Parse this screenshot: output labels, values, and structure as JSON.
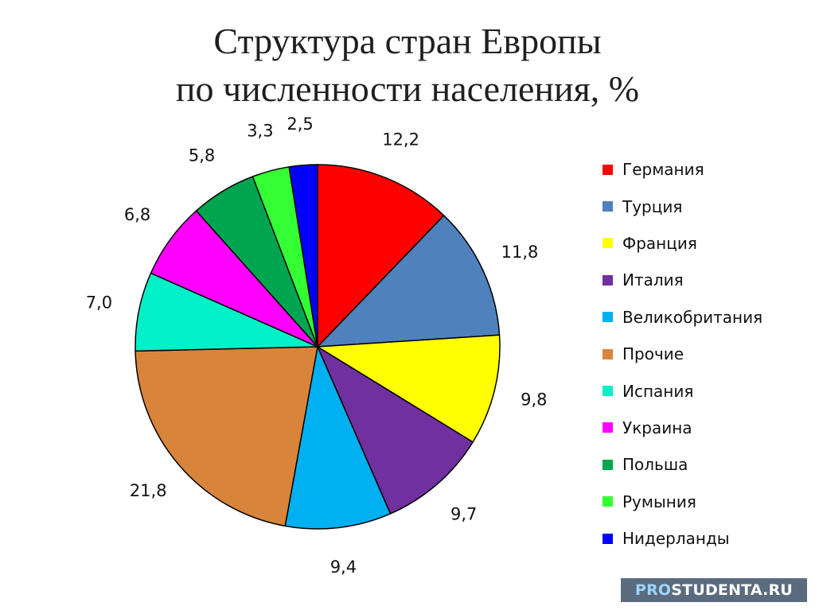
{
  "chart_data": {
    "type": "pie",
    "title": "Структура стран Европы",
    "subtitle": "по численности населения, %",
    "categories": [
      "Германия",
      "Турция",
      "Франция",
      "Италия",
      "Великобритания",
      "Прочие",
      "Испания",
      "Украина",
      "Польша",
      "Румыния",
      "Нидерланды"
    ],
    "values": [
      12.2,
      11.8,
      9.8,
      9.7,
      9.4,
      21.8,
      7.0,
      6.8,
      5.8,
      3.3,
      2.5
    ],
    "value_labels": [
      "12,2",
      "11,8",
      "9,8",
      "9,7",
      "9,4",
      "21,8",
      "7,0",
      "6,8",
      "5,8",
      "3,3",
      "2,5"
    ],
    "colors": [
      "#ff0000",
      "#4f81bd",
      "#ffff00",
      "#7030a0",
      "#00b0f0",
      "#d9843b",
      "#00f0c8",
      "#ff00ff",
      "#00a550",
      "#33ff33",
      "#0000ff"
    ],
    "legend_position": "right",
    "start_angle": "top, clockwise"
  },
  "watermark": {
    "prefix": "PRO",
    "rest": "STUDENTA.RU"
  }
}
